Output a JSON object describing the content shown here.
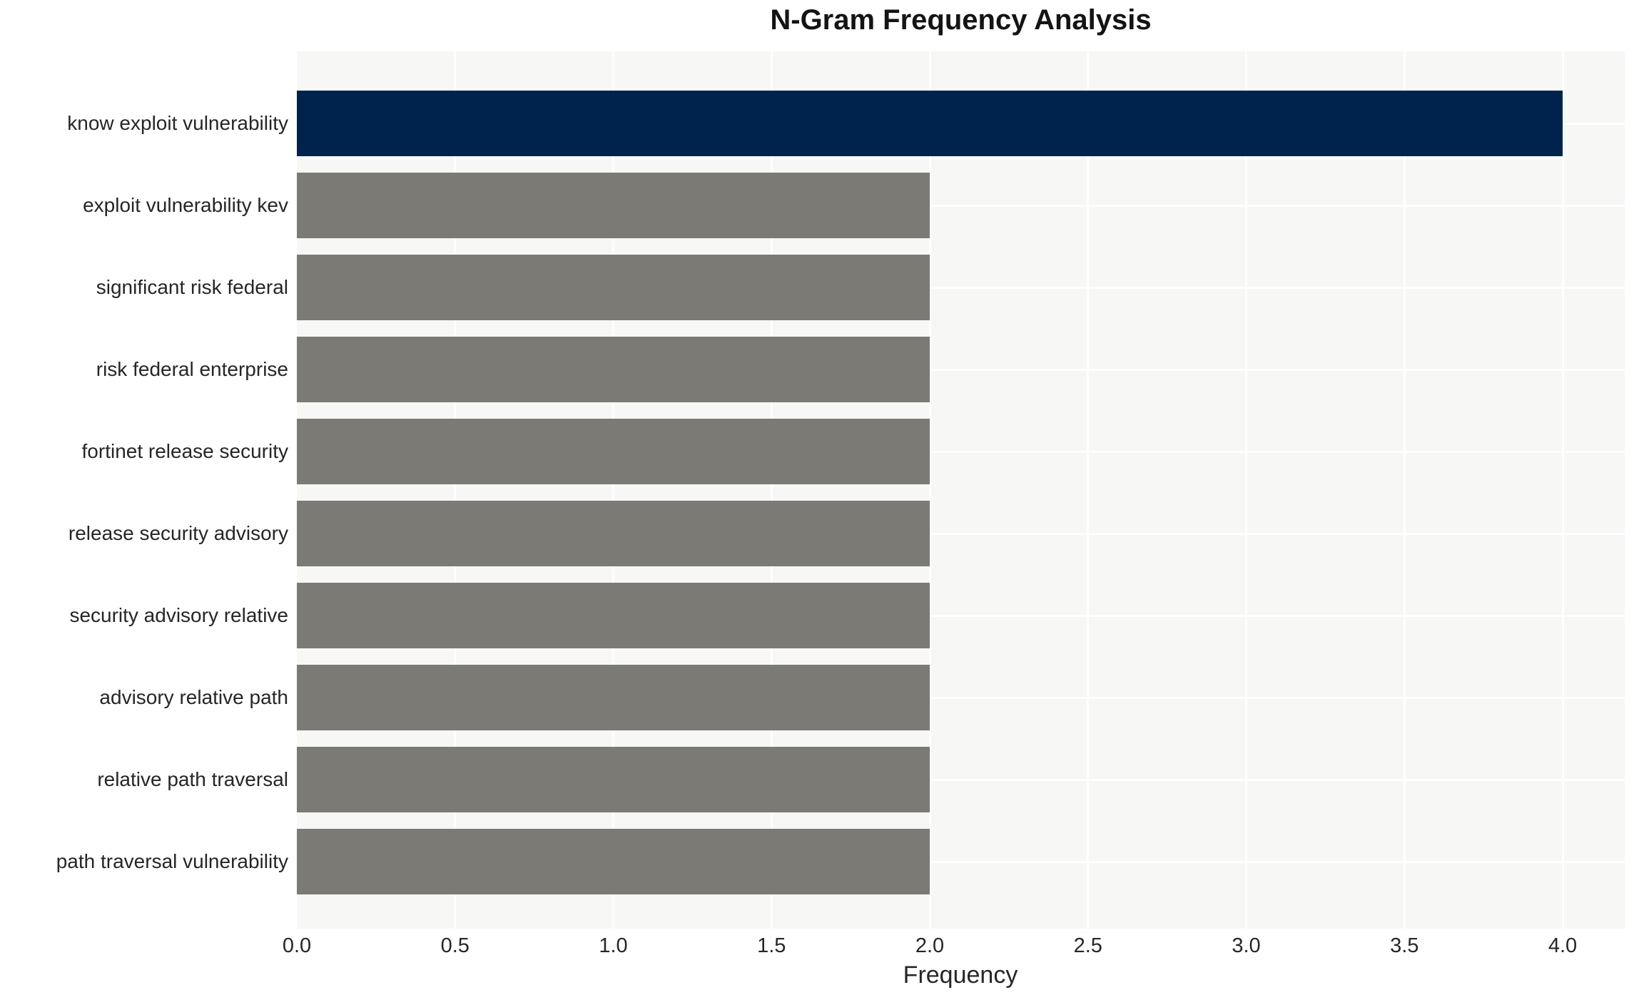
{
  "chart_data": {
    "type": "bar",
    "orientation": "horizontal",
    "title": "N-Gram Frequency Analysis",
    "xlabel": "Frequency",
    "ylabel": "",
    "categories": [
      "know exploit vulnerability",
      "exploit vulnerability kev",
      "significant risk federal",
      "risk federal enterprise",
      "fortinet release security",
      "release security advisory",
      "security advisory relative",
      "advisory relative path",
      "relative path traversal",
      "path traversal vulnerability"
    ],
    "values": [
      4,
      2,
      2,
      2,
      2,
      2,
      2,
      2,
      2,
      2
    ],
    "highlight_index": 0,
    "xlim": [
      0,
      4.2
    ],
    "xtick_values": [
      0,
      0.5,
      1,
      1.5,
      2,
      2.5,
      3,
      3.5,
      4
    ],
    "xtick_labels": [
      "0.0",
      "0.5",
      "1.0",
      "1.5",
      "2.0",
      "2.5",
      "3.0",
      "3.5",
      "4.0"
    ],
    "grid": true,
    "legend": false,
    "colors": {
      "highlight_bar": "#00234d",
      "bar": "#7b7a74",
      "plot_background": "#f7f7f6",
      "gridline": "#ffffff",
      "text": "#262626",
      "title": "#141414"
    }
  }
}
